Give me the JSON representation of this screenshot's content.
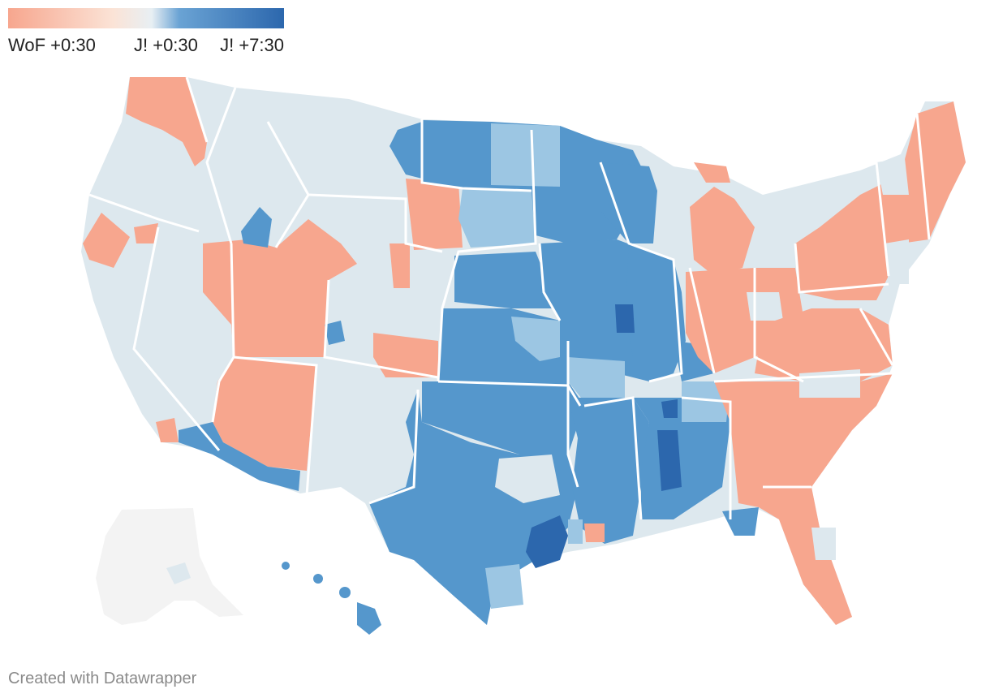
{
  "legend": {
    "labels": [
      "WoF +0:30",
      "J! +0:30",
      "J! +7:30"
    ],
    "colors": {
      "wof_strong": "#f7a68e",
      "wof_light": "#fbe3d6",
      "neutral": "#dde8ee",
      "j_light": "#9cc6e3",
      "j_mid": "#5597cc",
      "j_strong": "#2c67ad"
    }
  },
  "map": {
    "regions": [
      {
        "name": "west-coast",
        "category": "neutral"
      },
      {
        "name": "pacific-northwest",
        "category": "wof"
      },
      {
        "name": "oregon-coast",
        "category": "wof"
      },
      {
        "name": "great-basin",
        "category": "wof"
      },
      {
        "name": "arizona",
        "category": "wof"
      },
      {
        "name": "western-colorado",
        "category": "wof"
      },
      {
        "name": "southern-colorado",
        "category": "wof"
      },
      {
        "name": "eastern-wyoming",
        "category": "wof"
      },
      {
        "name": "idaho-falls",
        "category": "j_mid"
      },
      {
        "name": "yuma",
        "category": "j_mid"
      },
      {
        "name": "grand-junction",
        "category": "j_mid"
      },
      {
        "name": "dakotas-minnesota",
        "category": "j_mid"
      },
      {
        "name": "south-dakota",
        "category": "j_light"
      },
      {
        "name": "great-plains",
        "category": "j_mid"
      },
      {
        "name": "east-texas",
        "category": "j_mid"
      },
      {
        "name": "houston",
        "category": "j_strong"
      },
      {
        "name": "illinois",
        "category": "j_strong"
      },
      {
        "name": "mississippi",
        "category": "j_strong"
      },
      {
        "name": "oklahoma-ozarks",
        "category": "j_light"
      },
      {
        "name": "tennessee",
        "category": "j_light"
      },
      {
        "name": "great-lakes",
        "category": "wof"
      },
      {
        "name": "northeast",
        "category": "wof"
      },
      {
        "name": "southeast",
        "category": "wof"
      },
      {
        "name": "new-mexico",
        "category": "neutral"
      },
      {
        "name": "montana",
        "category": "neutral"
      },
      {
        "name": "hawaii",
        "category": "j_mid"
      },
      {
        "name": "alaska",
        "category": "none"
      }
    ]
  },
  "footer": {
    "credit": "Created with Datawrapper"
  }
}
